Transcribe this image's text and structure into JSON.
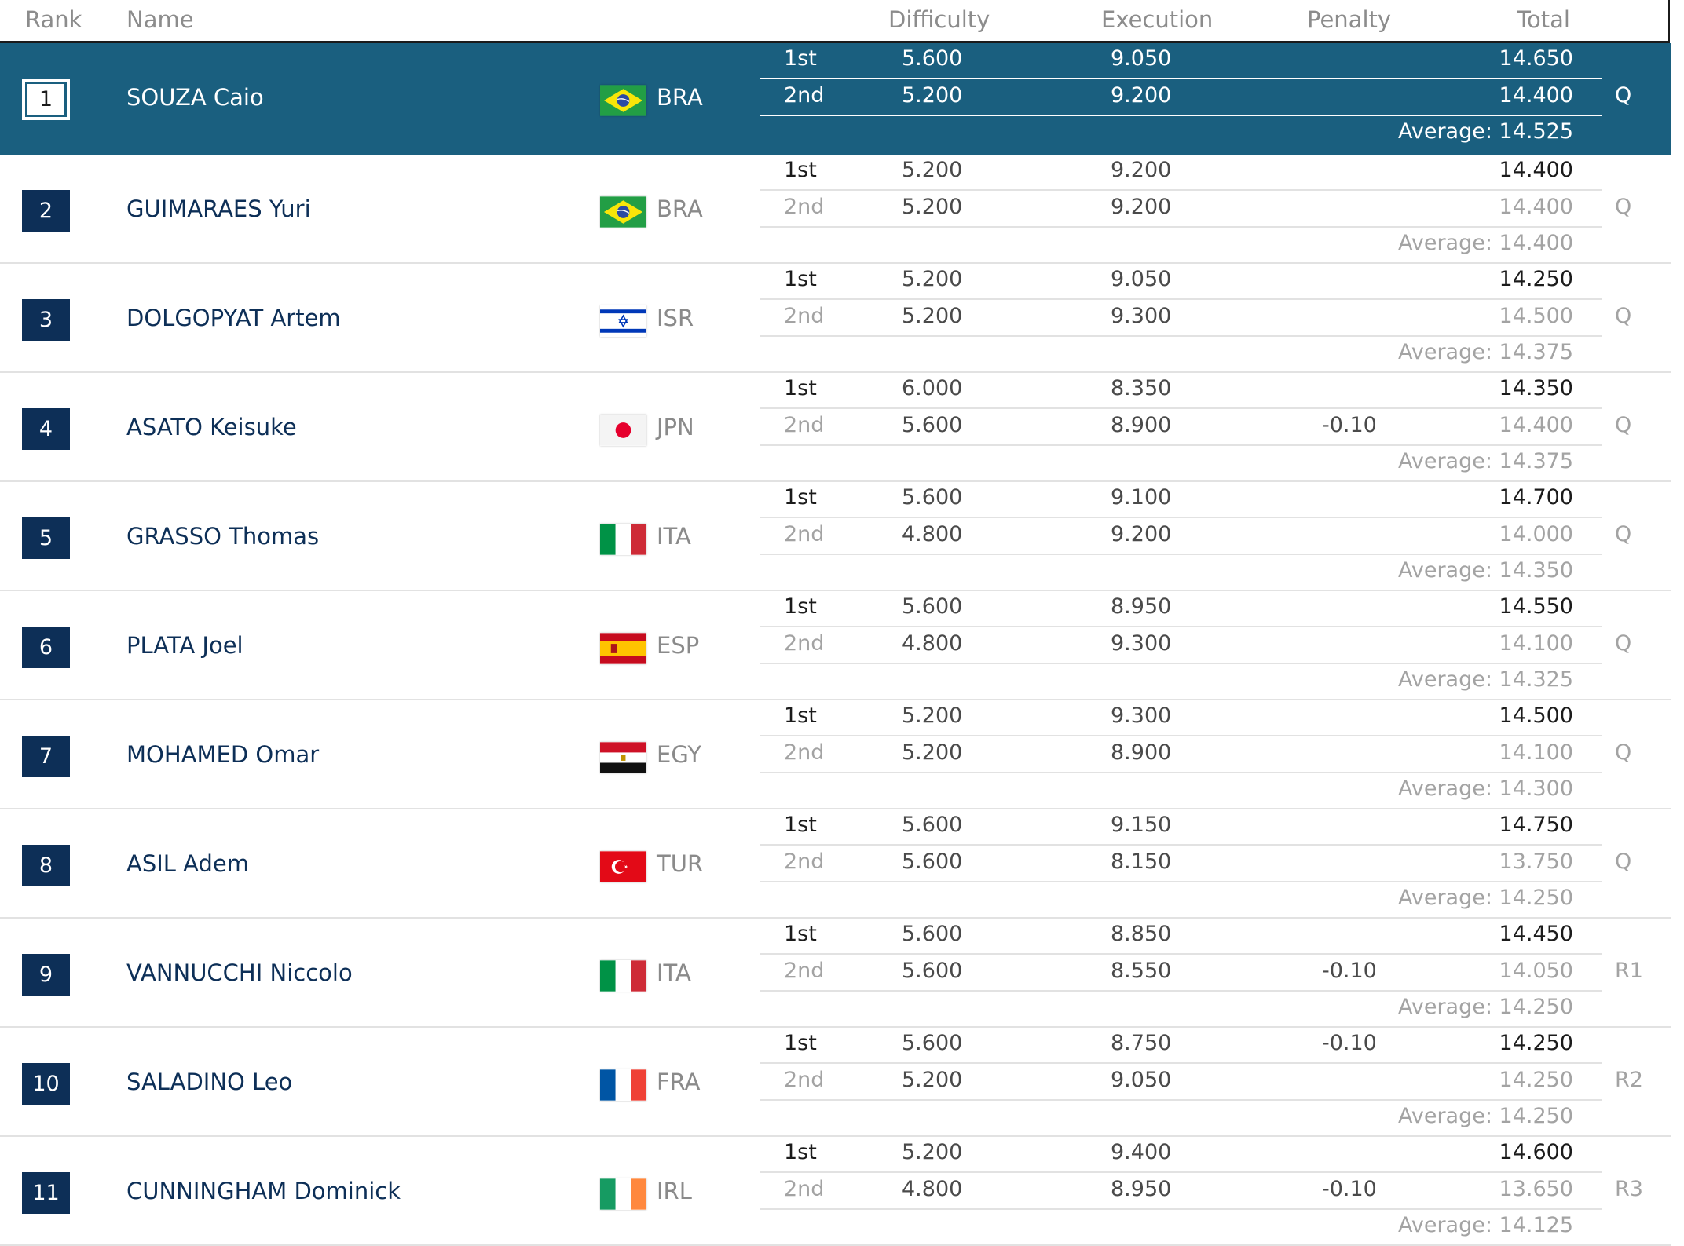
{
  "columns": {
    "rank": "Rank",
    "name": "Name",
    "difficulty": "Difficulty",
    "execution": "Execution",
    "penalty": "Penalty",
    "total": "Total"
  },
  "jump_labels": {
    "first": "1st",
    "second": "2nd"
  },
  "athletes": [
    {
      "rank": "1",
      "name": "SOUZA Caio",
      "noc": "BRA",
      "flag_icon": "brazil-flag-icon",
      "first": {
        "difficulty": "5.600",
        "execution": "9.050",
        "penalty": "",
        "total": "14.650"
      },
      "second": {
        "difficulty": "5.200",
        "execution": "9.200",
        "penalty": "",
        "total": "14.400"
      },
      "average": "Average: 14.525",
      "qualification": "Q"
    },
    {
      "rank": "2",
      "name": "GUIMARAES Yuri",
      "noc": "BRA",
      "flag_icon": "brazil-flag-icon",
      "first": {
        "difficulty": "5.200",
        "execution": "9.200",
        "penalty": "",
        "total": "14.400"
      },
      "second": {
        "difficulty": "5.200",
        "execution": "9.200",
        "penalty": "",
        "total": "14.400"
      },
      "average": "Average: 14.400",
      "qualification": "Q"
    },
    {
      "rank": "3",
      "name": "DOLGOPYAT Artem",
      "noc": "ISR",
      "flag_icon": "israel-flag-icon",
      "first": {
        "difficulty": "5.200",
        "execution": "9.050",
        "penalty": "",
        "total": "14.250"
      },
      "second": {
        "difficulty": "5.200",
        "execution": "9.300",
        "penalty": "",
        "total": "14.500"
      },
      "average": "Average: 14.375",
      "qualification": "Q"
    },
    {
      "rank": "4",
      "name": "ASATO Keisuke",
      "noc": "JPN",
      "flag_icon": "japan-flag-icon",
      "first": {
        "difficulty": "6.000",
        "execution": "8.350",
        "penalty": "",
        "total": "14.350"
      },
      "second": {
        "difficulty": "5.600",
        "execution": "8.900",
        "penalty": "-0.10",
        "total": "14.400"
      },
      "average": "Average: 14.375",
      "qualification": "Q"
    },
    {
      "rank": "5",
      "name": "GRASSO Thomas",
      "noc": "ITA",
      "flag_icon": "italy-flag-icon",
      "first": {
        "difficulty": "5.600",
        "execution": "9.100",
        "penalty": "",
        "total": "14.700"
      },
      "second": {
        "difficulty": "4.800",
        "execution": "9.200",
        "penalty": "",
        "total": "14.000"
      },
      "average": "Average: 14.350",
      "qualification": "Q"
    },
    {
      "rank": "6",
      "name": "PLATA Joel",
      "noc": "ESP",
      "flag_icon": "spain-flag-icon",
      "first": {
        "difficulty": "5.600",
        "execution": "8.950",
        "penalty": "",
        "total": "14.550"
      },
      "second": {
        "difficulty": "4.800",
        "execution": "9.300",
        "penalty": "",
        "total": "14.100"
      },
      "average": "Average: 14.325",
      "qualification": "Q"
    },
    {
      "rank": "7",
      "name": "MOHAMED Omar",
      "noc": "EGY",
      "flag_icon": "egypt-flag-icon",
      "first": {
        "difficulty": "5.200",
        "execution": "9.300",
        "penalty": "",
        "total": "14.500"
      },
      "second": {
        "difficulty": "5.200",
        "execution": "8.900",
        "penalty": "",
        "total": "14.100"
      },
      "average": "Average: 14.300",
      "qualification": "Q"
    },
    {
      "rank": "8",
      "name": "ASIL Adem",
      "noc": "TUR",
      "flag_icon": "turkey-flag-icon",
      "first": {
        "difficulty": "5.600",
        "execution": "9.150",
        "penalty": "",
        "total": "14.750"
      },
      "second": {
        "difficulty": "5.600",
        "execution": "8.150",
        "penalty": "",
        "total": "13.750"
      },
      "average": "Average: 14.250",
      "qualification": "Q"
    },
    {
      "rank": "9",
      "name": "VANNUCCHI Niccolo",
      "noc": "ITA",
      "flag_icon": "italy-flag-icon",
      "first": {
        "difficulty": "5.600",
        "execution": "8.850",
        "penalty": "",
        "total": "14.450"
      },
      "second": {
        "difficulty": "5.600",
        "execution": "8.550",
        "penalty": "-0.10",
        "total": "14.050"
      },
      "average": "Average: 14.250",
      "qualification": "R1"
    },
    {
      "rank": "10",
      "name": "SALADINO Leo",
      "noc": "FRA",
      "flag_icon": "france-flag-icon",
      "first": {
        "difficulty": "5.600",
        "execution": "8.750",
        "penalty": "-0.10",
        "total": "14.250"
      },
      "second": {
        "difficulty": "5.200",
        "execution": "9.050",
        "penalty": "",
        "total": "14.250"
      },
      "average": "Average: 14.250",
      "qualification": "R2"
    },
    {
      "rank": "11",
      "name": "CUNNINGHAM Dominick",
      "noc": "IRL",
      "flag_icon": "ireland-flag-icon",
      "first": {
        "difficulty": "5.200",
        "execution": "9.400",
        "penalty": "",
        "total": "14.600"
      },
      "second": {
        "difficulty": "4.800",
        "execution": "8.950",
        "penalty": "-0.10",
        "total": "13.650"
      },
      "average": "Average: 14.125",
      "qualification": "R3"
    }
  ]
}
